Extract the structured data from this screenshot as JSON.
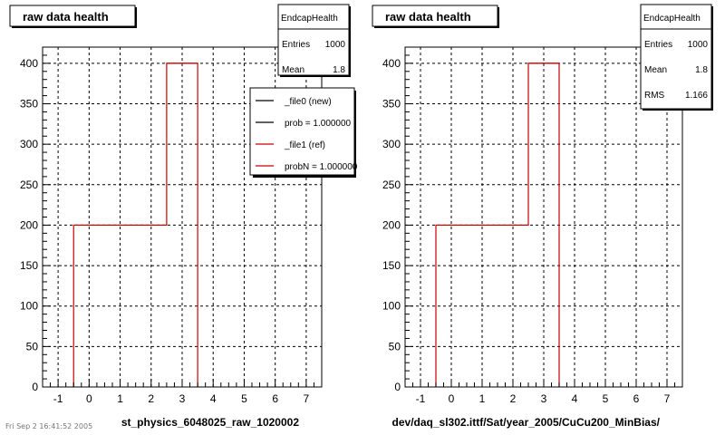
{
  "footer_text": "Fri Sep 2 16:41:52 2005",
  "colors": {
    "axis": "#000000",
    "grid": "#000000",
    "histogram": "#cc0000",
    "shadow": "#000000",
    "frame": "#000000"
  },
  "chart_data": [
    {
      "type": "bar",
      "title": "raw data health",
      "xlabel": "st_physics_6048025_raw_1020002",
      "ylabel": "",
      "xlim": [
        -1.5,
        7.5
      ],
      "ylim": [
        0,
        420
      ],
      "x_ticks": [
        -1,
        0,
        1,
        2,
        3,
        4,
        5,
        6,
        7
      ],
      "y_ticks": [
        0,
        50,
        100,
        150,
        200,
        250,
        300,
        350,
        400
      ],
      "grid": true,
      "series": [
        {
          "name": "_file1 (ref)",
          "color": "#cc0000",
          "bins": [
            {
              "x_low": -0.5,
              "x_high": 0.5,
              "value": 200
            },
            {
              "x_low": 0.5,
              "x_high": 1.5,
              "value": 200
            },
            {
              "x_low": 1.5,
              "x_high": 2.5,
              "value": 200
            },
            {
              "x_low": 2.5,
              "x_high": 3.5,
              "value": 400
            }
          ]
        }
      ],
      "stats_box": {
        "title": "EndcapHealth",
        "rows": [
          {
            "label": "Entries",
            "value": "1000"
          },
          {
            "label": "Mean",
            "value": "1.8"
          }
        ]
      },
      "legend": {
        "placement": "top-right",
        "entries": [
          {
            "text": "_file0 (new)",
            "color": "#000000"
          },
          {
            "text": "prob = 1.000000",
            "color": "#000000"
          },
          {
            "text": "_file1 (ref)",
            "color": "#cc0000"
          },
          {
            "text": "probN = 1.000000",
            "color": "#cc0000"
          }
        ]
      }
    },
    {
      "type": "bar",
      "title": "raw data health",
      "xlabel": "dev/daq_sl302.ittf/Sat/year_2005/CuCu200_MinBias/",
      "ylabel": "",
      "xlim": [
        -1.5,
        7.5
      ],
      "ylim": [
        0,
        420
      ],
      "x_ticks": [
        -1,
        0,
        1,
        2,
        3,
        4,
        5,
        6,
        7
      ],
      "y_ticks": [
        0,
        50,
        100,
        150,
        200,
        250,
        300,
        350,
        400
      ],
      "grid": true,
      "series": [
        {
          "name": "",
          "color": "#cc0000",
          "bins": [
            {
              "x_low": -0.5,
              "x_high": 0.5,
              "value": 200
            },
            {
              "x_low": 0.5,
              "x_high": 1.5,
              "value": 200
            },
            {
              "x_low": 1.5,
              "x_high": 2.5,
              "value": 200
            },
            {
              "x_low": 2.5,
              "x_high": 3.5,
              "value": 400
            }
          ]
        }
      ],
      "stats_box": {
        "title": "EndcapHealth",
        "rows": [
          {
            "label": "Entries",
            "value": "1000"
          },
          {
            "label": "Mean",
            "value": "1.8"
          },
          {
            "label": "RMS",
            "value": "1.166"
          }
        ]
      }
    }
  ]
}
